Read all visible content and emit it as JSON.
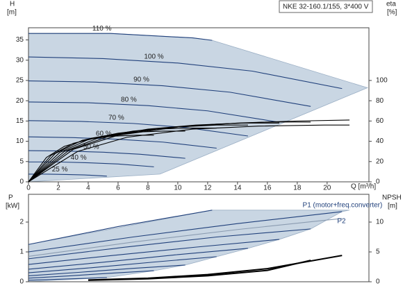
{
  "chart_data": [
    {
      "type": "line",
      "title": "NKE 32-160.1/155, 3*400 V",
      "ylabel": [
        "H",
        "[m]"
      ],
      "y2label": [
        "eta",
        "[%]"
      ],
      "xlabel": "Q [m³/h]",
      "xlim": [
        0,
        22.8
      ],
      "xticks": [
        0,
        2,
        4,
        6,
        8,
        10,
        12,
        14,
        16,
        18,
        20
      ],
      "ylim": [
        0,
        38
      ],
      "yticks": [
        0,
        5,
        10,
        15,
        20,
        25,
        30,
        35
      ],
      "y2lim": [
        0,
        152
      ],
      "y2ticks": [
        0,
        20,
        40,
        60,
        80,
        100
      ],
      "region": {
        "color": "#c9d6e3",
        "x": [
          0,
          0,
          5.5,
          11,
          12.3,
          22.7,
          8.8
        ],
        "values": [
          0,
          36.6,
          36.6,
          35.5,
          34.9,
          23.2,
          1.9
        ]
      },
      "series": [
        {
          "name": "110 %",
          "color": "#1f3f7a",
          "x": [
            0,
            5.5,
            11,
            12.3
          ],
          "values": [
            36.6,
            36.6,
            35.5,
            34.9
          ]
        },
        {
          "name": "100 %",
          "color": "#1f3f7a",
          "x": [
            0,
            5,
            10,
            15,
            21
          ],
          "values": [
            30.8,
            30.4,
            29.3,
            27.3,
            23.0
          ]
        },
        {
          "name": "90 %",
          "color": "#1f3f7a",
          "x": [
            0,
            4.5,
            9,
            13.5,
            18.9
          ],
          "values": [
            24.9,
            24.6,
            23.7,
            22.1,
            18.6
          ]
        },
        {
          "name": "80 %",
          "color": "#1f3f7a",
          "x": [
            0,
            4,
            8,
            12,
            16.8
          ],
          "values": [
            19.7,
            19.5,
            18.8,
            17.5,
            14.7
          ]
        },
        {
          "name": "70 %",
          "color": "#1f3f7a",
          "x": [
            0,
            3.5,
            7,
            10.5,
            14.7
          ],
          "values": [
            15.1,
            14.9,
            14.4,
            13.4,
            11.3
          ]
        },
        {
          "name": "60 %",
          "color": "#1f3f7a",
          "x": [
            0,
            3,
            6,
            9,
            12.6
          ],
          "values": [
            11.1,
            10.9,
            10.5,
            9.8,
            8.3
          ]
        },
        {
          "name": "50 %",
          "color": "#1f3f7a",
          "x": [
            0,
            2.5,
            5,
            7.5,
            10.5
          ],
          "values": [
            7.7,
            7.6,
            7.3,
            6.8,
            5.8
          ]
        },
        {
          "name": "40 %",
          "color": "#1f3f7a",
          "x": [
            0,
            2,
            4,
            6,
            8.4
          ],
          "values": [
            4.9,
            4.9,
            4.7,
            4.4,
            3.7
          ]
        },
        {
          "name": "25 %",
          "color": "#1f3f7a",
          "x": [
            0,
            1.25,
            2.5,
            3.75,
            5.25
          ],
          "values": [
            1.9,
            1.9,
            1.8,
            1.7,
            1.4
          ]
        },
        {
          "color": "#000000",
          "axis": "y2",
          "x": [
            0,
            3.3,
            6.6,
            11,
            15.4,
            19.8,
            21.5
          ],
          "values": [
            0,
            30,
            44,
            52,
            55,
            56,
            56
          ]
        },
        {
          "color": "#000000",
          "axis": "y2",
          "x": [
            0,
            3,
            6,
            10,
            14,
            18,
            21.5
          ],
          "values": [
            0,
            32,
            46,
            54,
            58,
            60,
            61
          ]
        },
        {
          "color": "#000000",
          "axis": "y2",
          "x": [
            0,
            2.7,
            5.4,
            9,
            12.6,
            16.2,
            18.9
          ],
          "values": [
            0,
            31,
            45,
            53,
            57,
            59,
            59
          ]
        },
        {
          "color": "#000000",
          "axis": "y2",
          "x": [
            0,
            2.4,
            4.8,
            8,
            11.2,
            14.4,
            16.8
          ],
          "values": [
            0,
            30,
            44,
            52,
            56,
            58,
            58
          ]
        },
        {
          "color": "#000000",
          "axis": "y2",
          "x": [
            0,
            2.1,
            4.2,
            7,
            9.8,
            12.6,
            14.7
          ],
          "values": [
            0,
            29,
            43,
            50,
            54,
            56,
            56
          ]
        },
        {
          "color": "#000000",
          "axis": "y2",
          "x": [
            0,
            1.8,
            3.6,
            6,
            8.4,
            10.8,
            12.6
          ],
          "values": [
            0,
            28,
            41,
            48,
            52,
            53,
            53
          ]
        },
        {
          "color": "#000000",
          "axis": "y2",
          "x": [
            0,
            1.5,
            3,
            5,
            7,
            9,
            10.5
          ],
          "values": [
            0,
            26,
            38,
            45,
            49,
            50,
            50
          ]
        },
        {
          "color": "#000000",
          "axis": "y2",
          "x": [
            0,
            1.2,
            2.4,
            4,
            5.6,
            7.2,
            8.4
          ],
          "values": [
            0,
            24,
            35,
            42,
            45,
            46,
            46
          ]
        }
      ]
    },
    {
      "type": "line",
      "ylabel": [
        "P",
        "[kW]"
      ],
      "y2label": [
        "NPSH",
        "[m]"
      ],
      "xlim": [
        0,
        22.8
      ],
      "ylim": [
        0,
        2.93
      ],
      "yticks": [
        0,
        1,
        2
      ],
      "y2lim": [
        0,
        14.65
      ],
      "y2ticks": [
        0,
        5,
        10
      ],
      "region": {
        "color": "#c9d6e3",
        "x": [
          0,
          0,
          12.3,
          21.5,
          21,
          18.9,
          16.8,
          14.7,
          12.6,
          10.5,
          8.4,
          5.25
        ],
        "values": [
          0,
          1.25,
          2.4,
          2.4,
          2.35,
          1.77,
          1.42,
          1.12,
          0.84,
          0.56,
          0.37,
          0.14
        ]
      },
      "series": [
        {
          "color": "#1f3f7a",
          "x": [
            0,
            6,
            12.3
          ],
          "values": [
            1.25,
            1.85,
            2.4
          ]
        },
        {
          "name": "P1 (motor+freq.converter)",
          "color": "#1f3f7a",
          "x": [
            0,
            7,
            14,
            21
          ],
          "values": [
            1.0,
            1.5,
            1.95,
            2.35
          ]
        },
        {
          "color": "#1f3f7a",
          "x": [
            0,
            6.3,
            12.6,
            18.9
          ],
          "values": [
            0.77,
            1.15,
            1.5,
            1.77
          ]
        },
        {
          "color": "#1f3f7a",
          "x": [
            0,
            5.6,
            11.2,
            16.8
          ],
          "values": [
            0.58,
            0.88,
            1.16,
            1.42
          ]
        },
        {
          "color": "#1f3f7a",
          "x": [
            0,
            4.9,
            9.8,
            14.7
          ],
          "values": [
            0.42,
            0.65,
            0.9,
            1.12
          ]
        },
        {
          "color": "#1f3f7a",
          "x": [
            0,
            4.2,
            8.4,
            12.6
          ],
          "values": [
            0.3,
            0.47,
            0.66,
            0.84
          ]
        },
        {
          "color": "#1f3f7a",
          "x": [
            0,
            3.5,
            7,
            10.5
          ],
          "values": [
            0.2,
            0.32,
            0.45,
            0.56
          ]
        },
        {
          "color": "#1f3f7a",
          "x": [
            0,
            2.8,
            5.6,
            8.4
          ],
          "values": [
            0.12,
            0.2,
            0.29,
            0.37
          ]
        },
        {
          "color": "#1f3f7a",
          "x": [
            0,
            1.75,
            3.5,
            5.25
          ],
          "values": [
            0.05,
            0.08,
            0.11,
            0.14
          ]
        },
        {
          "name": "P2",
          "color": "#8a9bb0",
          "x": [
            0,
            7,
            14,
            21
          ],
          "values": [
            0.85,
            1.33,
            1.75,
            2.12
          ]
        },
        {
          "color": "#000000",
          "axis": "y2",
          "x": [
            4,
            8,
            12,
            16,
            21
          ],
          "values": [
            0.3,
            0.6,
            1.2,
            2.2,
            4.4
          ]
        },
        {
          "color": "#000000",
          "axis": "y2",
          "x": [
            4,
            8,
            12,
            16,
            18.9
          ],
          "values": [
            0.25,
            0.5,
            1.0,
            1.9,
            3.6
          ]
        }
      ]
    }
  ]
}
